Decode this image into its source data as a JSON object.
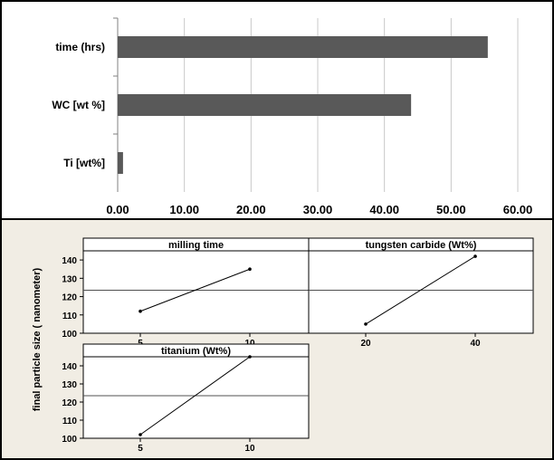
{
  "chart_data": [
    {
      "type": "bar",
      "orientation": "horizontal",
      "categories": [
        "time (hrs)",
        "WC [wt %]",
        "Ti  [wt%]"
      ],
      "values": [
        55.5,
        44.0,
        0.8
      ],
      "xlim": [
        0,
        60
      ],
      "x_tick_labels": [
        "0.00",
        "10.00",
        "20.00",
        "30.00",
        "40.00",
        "50.00",
        "60.00"
      ],
      "grid": "vertical",
      "bar_color": "#595959"
    },
    {
      "type": "line",
      "ylabel": "final particle size ( nanometer)",
      "ylim": [
        100,
        145
      ],
      "y_ticks": [
        "100",
        "110",
        "120",
        "130",
        "140"
      ],
      "mean_line": 123.5,
      "background_color": "#f1ede4",
      "panels": [
        {
          "title": "milling time",
          "x_ticks": [
            "5",
            "10"
          ],
          "y": [
            112,
            135
          ]
        },
        {
          "title": "tungsten carbide (Wt%)",
          "x_ticks": [
            "20",
            "40"
          ],
          "y": [
            105,
            142
          ]
        },
        {
          "title": "titanium (Wt%)",
          "x_ticks": [
            "5",
            "10"
          ],
          "y": [
            102,
            145
          ]
        }
      ]
    }
  ]
}
